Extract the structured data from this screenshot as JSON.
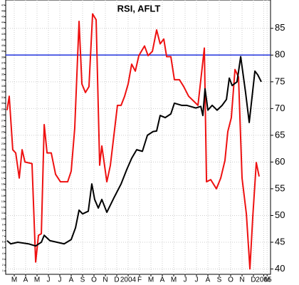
{
  "chart_data": {
    "type": "line",
    "title": "RSI, AFLT",
    "xlim": [
      -0.75,
      22.5
    ],
    "xticks": [
      {
        "value": 0,
        "label": "M"
      },
      {
        "value": 1,
        "label": "A"
      },
      {
        "value": 2,
        "label": "M"
      },
      {
        "value": 3,
        "label": "J"
      },
      {
        "value": 4,
        "label": "J"
      },
      {
        "value": 5,
        "label": "A"
      },
      {
        "value": 6,
        "label": "S"
      },
      {
        "value": 7,
        "label": "O"
      },
      {
        "value": 8,
        "label": "N"
      },
      {
        "value": 9,
        "label": "D"
      },
      {
        "value": 10,
        "label": "2004"
      },
      {
        "value": 11,
        "label": "F"
      },
      {
        "value": 12,
        "label": "M"
      },
      {
        "value": 13,
        "label": "A"
      },
      {
        "value": 14,
        "label": "M"
      },
      {
        "value": 15,
        "label": "J"
      },
      {
        "value": 16,
        "label": "J"
      },
      {
        "value": 17,
        "label": "A"
      },
      {
        "value": 18,
        "label": "S"
      },
      {
        "value": 19,
        "label": "O"
      },
      {
        "value": 20,
        "label": "N"
      },
      {
        "value": 21,
        "label": "D"
      },
      {
        "value": 21.9,
        "label": "2005"
      },
      {
        "value": 22.2,
        "label": "M"
      }
    ],
    "ylim": [
      39,
      90.3
    ],
    "yticks": [
      40,
      45,
      50,
      55,
      60,
      65,
      70,
      75,
      80,
      85
    ],
    "y2lim": [
      0.4,
      47.9
    ],
    "y2ticks": [
      1,
      2,
      3,
      4,
      5,
      6,
      7,
      8,
      9,
      10,
      11,
      12,
      13,
      14,
      15,
      16,
      17,
      18,
      19,
      20,
      21,
      22,
      23,
      24,
      25,
      26,
      27,
      28,
      29,
      30,
      31,
      32,
      33,
      34,
      35,
      36,
      37,
      38,
      39,
      40,
      41,
      42,
      43,
      44,
      45,
      46,
      47
    ],
    "grid": true,
    "reference_line": {
      "value": 80,
      "color": "#2233dd"
    },
    "series": [
      {
        "color": "#ee1111",
        "x": [
          -0.63,
          -0.44,
          -0.13,
          0.13,
          0.44,
          0.69,
          0.94,
          1.56,
          1.88,
          2.13,
          2.38,
          2.63,
          2.88,
          3.25,
          3.63,
          4.06,
          4.69,
          5,
          5.31,
          5.69,
          5.94,
          6.25,
          6.56,
          6.88,
          7.19,
          7.5,
          7.69,
          8.13,
          8.44,
          8.75,
          9.06,
          9.38,
          9.69,
          10,
          10.31,
          10.63,
          10.94,
          11.44,
          11.75,
          12.13,
          12.5,
          12.81,
          13.13,
          13.38,
          13.75,
          14.06,
          14.5,
          14.88,
          15.31,
          15.75,
          16.13,
          16.69,
          16.88,
          17.25,
          17.75,
          18.13,
          18.5,
          18.75,
          19.06,
          19.38,
          19.69,
          20,
          20.38,
          20.69,
          20.94,
          21.25,
          21.5
        ],
        "values": [
          69.7,
          72.3,
          62.3,
          61.7,
          57,
          62.3,
          60,
          59.7,
          41.3,
          46.3,
          46.6,
          67,
          61.7,
          61.7,
          57.7,
          56.3,
          56.3,
          58.3,
          66.3,
          86.3,
          74.6,
          73,
          74.1,
          87.7,
          86.6,
          59.4,
          63,
          56.3,
          59.4,
          65,
          70.6,
          70.6,
          72.3,
          74.6,
          78.3,
          77,
          79.9,
          81.7,
          79.9,
          80.7,
          84.7,
          82.1,
          83,
          79.7,
          79.7,
          75.4,
          75.4,
          74.1,
          72.3,
          71.4,
          70.6,
          81.3,
          56.3,
          56.7,
          55,
          57,
          60.3,
          65.7,
          68.3,
          77.3,
          75.9,
          57,
          50.3,
          40,
          49.7,
          59.9,
          57.3
        ]
      },
      {
        "color": "#000000",
        "x": [
          -0.63,
          -0.31,
          0.31,
          1.25,
          1.88,
          2.38,
          2.63,
          3.13,
          4.38,
          5,
          5.38,
          5.69,
          6,
          6.5,
          6.81,
          7.06,
          7.38,
          7.69,
          8.13,
          8.75,
          9.38,
          9.88,
          10.31,
          10.75,
          11.25,
          11.69,
          12.19,
          12.5,
          12.81,
          13.25,
          13.75,
          14.06,
          14.69,
          15.13,
          15.94,
          16.38,
          16.56,
          16.75,
          17,
          17.38,
          17.81,
          18.25,
          18.63,
          18.88,
          19.13,
          19.56,
          19.88,
          20.31,
          20.63,
          21.13,
          21.38,
          21.69
        ],
        "values": [
          45.3,
          44.7,
          45,
          44.7,
          44.3,
          45,
          46.3,
          45.3,
          44.7,
          45.5,
          47.7,
          51,
          50.3,
          50.8,
          55.9,
          53,
          51.4,
          53,
          50.6,
          53.3,
          55.9,
          58.6,
          60.7,
          62.3,
          62,
          65,
          65.7,
          65.8,
          68.7,
          68.3,
          69,
          71,
          70.6,
          70.6,
          70.1,
          70.4,
          68.7,
          73.7,
          69.7,
          70.6,
          69.7,
          70.6,
          71.7,
          75.7,
          74.3,
          75,
          79.7,
          73,
          67.4,
          77,
          76.3,
          75
        ]
      }
    ]
  }
}
